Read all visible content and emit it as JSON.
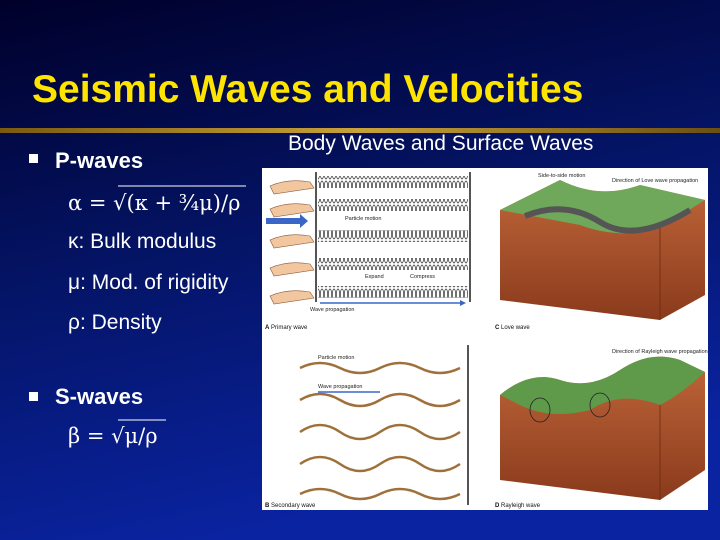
{
  "title": "Seismic Waves and Velocities",
  "figure_title": "Body Waves and Surface Waves",
  "bullets": [
    {
      "heading": "P-waves",
      "formula": {
        "prefix": "α = ",
        "radical": "√",
        "radicand": "(κ + ¾μ)/ρ"
      },
      "lines": [
        "κ: Bulk modulus",
        "μ: Mod. of rigidity",
        "ρ: Density"
      ]
    },
    {
      "heading": "S-waves",
      "formula": {
        "prefix": "β = ",
        "radical": "√",
        "radicand": "μ/ρ"
      }
    }
  ],
  "figure": {
    "panels": [
      {
        "label": "A",
        "caption": "Primary wave",
        "annotations": [
          "Particle motion",
          "Expand",
          "Compress",
          "Wave propagation"
        ]
      },
      {
        "label": "B",
        "caption": "Secondary wave",
        "annotations": [
          "Particle motion",
          "Wave propagation"
        ]
      },
      {
        "label": "C",
        "caption": "Love wave",
        "annotations": [
          "Side-to-side motion",
          "Direction of Love wave propagation"
        ]
      },
      {
        "label": "D",
        "caption": "Rayleigh wave",
        "annotations": [
          "Direction of Rayleigh wave propagation"
        ]
      }
    ]
  }
}
